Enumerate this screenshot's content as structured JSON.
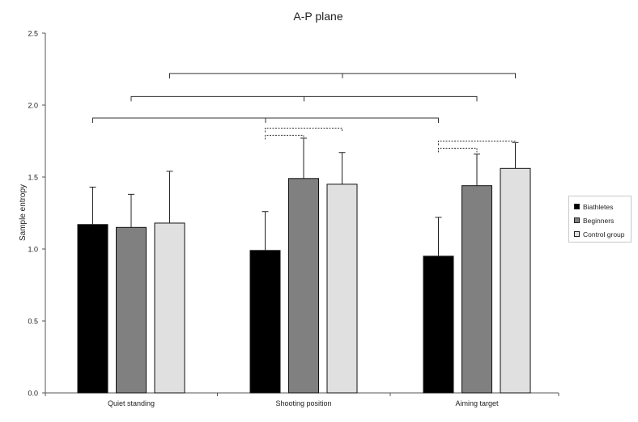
{
  "chart_data": {
    "type": "bar",
    "title": "A-P plane",
    "xlabel": "",
    "ylabel": "Sample entropy",
    "ylim": [
      0,
      2.5
    ],
    "yticks": [
      "0.0",
      "0.5",
      "1.0",
      "1.5",
      "2.0",
      "2.5"
    ],
    "grid": false,
    "legend_position": "right",
    "categories": [
      "Quiet standing",
      "Shooting position",
      "Aiming target"
    ],
    "series": [
      {
        "name": "Biathletes",
        "color": "#000000",
        "values": [
          1.17,
          0.99,
          0.95
        ],
        "errors": [
          0.26,
          0.27,
          0.27
        ]
      },
      {
        "name": "Beginners",
        "color": "#808080",
        "values": [
          1.15,
          1.49,
          1.44
        ],
        "errors": [
          0.23,
          0.28,
          0.22
        ]
      },
      {
        "name": "Control group",
        "color": "#e0e0e0",
        "values": [
          1.18,
          1.45,
          1.56
        ],
        "errors": [
          0.36,
          0.22,
          0.18
        ]
      }
    ],
    "significance_brackets": [
      {
        "style": "solid",
        "level": 1.91,
        "from": [
          0,
          0
        ],
        "to": [
          2,
          0
        ]
      },
      {
        "style": "solid",
        "level": 2.06,
        "from": [
          0,
          1
        ],
        "to": [
          2,
          1
        ]
      },
      {
        "style": "solid",
        "level": 2.22,
        "from": [
          0,
          2
        ],
        "to": [
          2,
          2
        ]
      },
      {
        "style": "dotted",
        "level": 1.84,
        "from": [
          1,
          0
        ],
        "to": [
          1,
          2
        ]
      },
      {
        "style": "dotted",
        "level": 1.79,
        "from": [
          1,
          0
        ],
        "to": [
          1,
          1
        ]
      },
      {
        "style": "dotted",
        "level": 1.75,
        "from": [
          2,
          0
        ],
        "to": [
          2,
          2
        ]
      },
      {
        "style": "dotted",
        "level": 1.7,
        "from": [
          2,
          0
        ],
        "to": [
          2,
          1
        ]
      }
    ]
  }
}
